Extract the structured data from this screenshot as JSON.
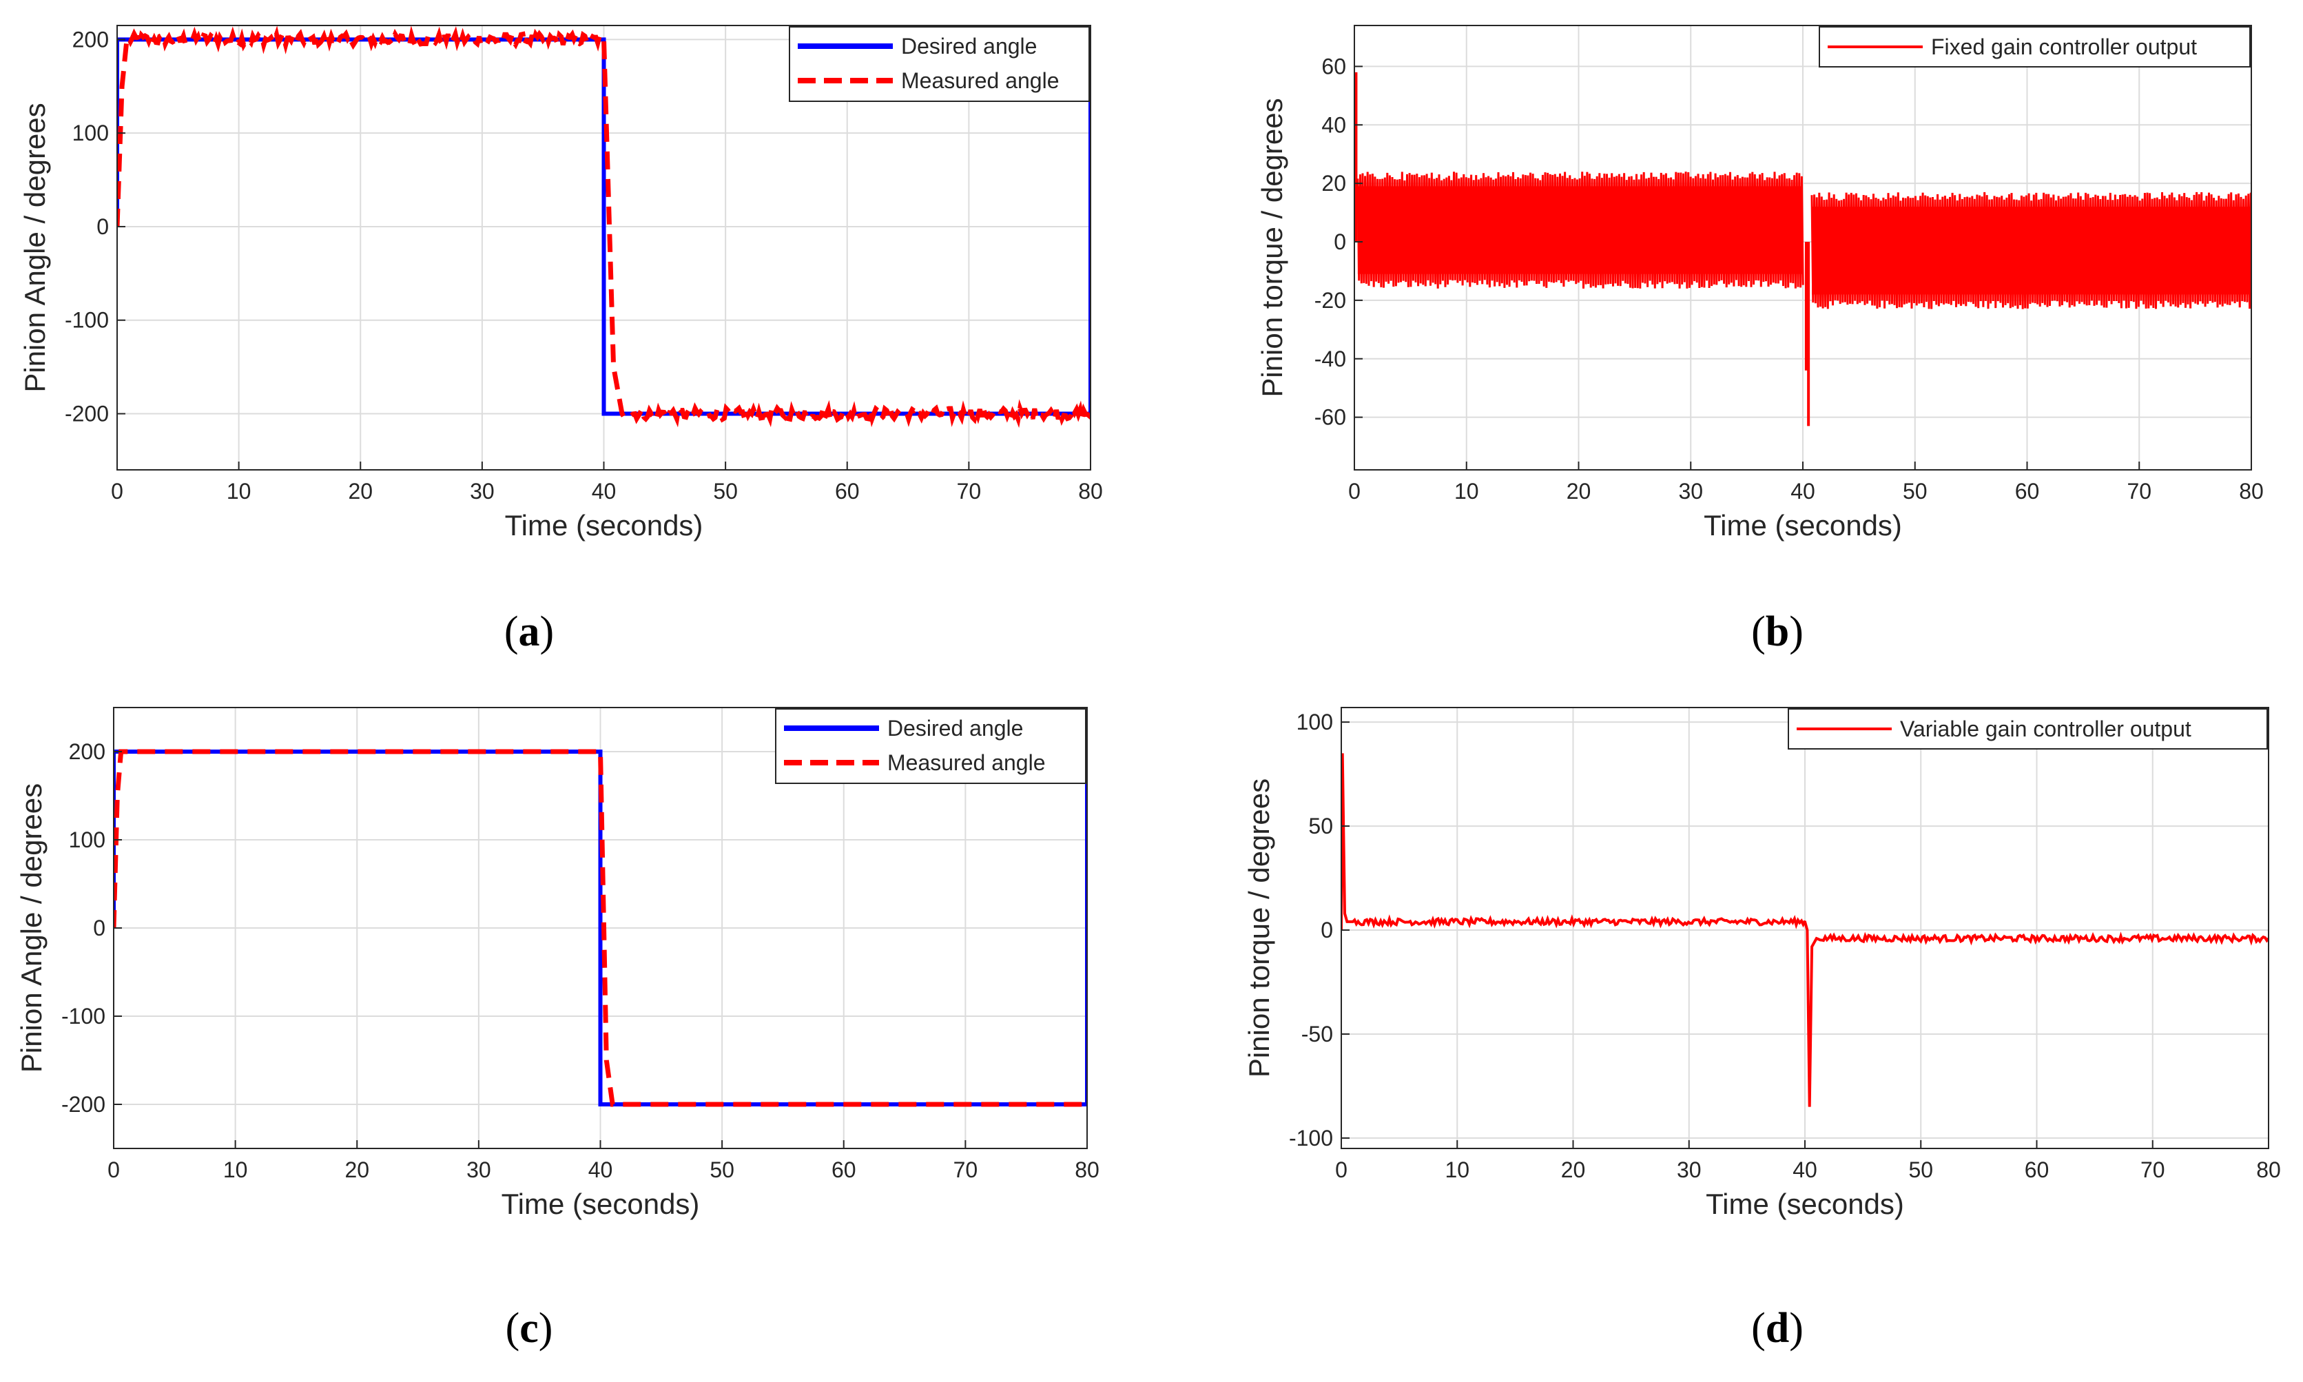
{
  "chart_data": [
    {
      "id": "a",
      "type": "line",
      "caption": "a",
      "xlabel": "Time (seconds)",
      "ylabel": "Pinion Angle / degrees",
      "xlim": [
        0,
        80
      ],
      "ylim": [
        -260,
        215
      ],
      "xticks": [
        0,
        10,
        20,
        30,
        40,
        50,
        60,
        70,
        80
      ],
      "yticks": [
        -200,
        -100,
        0,
        100,
        200
      ],
      "xtick_labels": [
        "0",
        "10",
        "20",
        "30",
        "40",
        "50",
        "60",
        "70",
        "80"
      ],
      "ytick_labels": [
        "-200",
        "-100",
        "0",
        "100",
        "200"
      ],
      "legend": {
        "location": "top-right",
        "entries": [
          "Desired angle",
          "Measured angle"
        ]
      },
      "series": [
        {
          "name": "Desired angle",
          "color": "#0000ff",
          "style": "solid",
          "x": [
            0,
            0,
            40,
            40,
            80,
            80
          ],
          "y": [
            0,
            200,
            200,
            -200,
            -200,
            200
          ]
        },
        {
          "name": "Measured angle",
          "color": "#ff0000",
          "style": "dashed",
          "x": [
            0,
            0.4,
            0.8,
            40,
            40.8,
            41.5,
            80
          ],
          "y": [
            0,
            150,
            200,
            200,
            -150,
            -200,
            -200
          ],
          "noise": 6
        }
      ]
    },
    {
      "id": "b",
      "type": "line",
      "caption": "b",
      "xlabel": "Time (seconds)",
      "ylabel": "Pinion torque / degrees",
      "xlim": [
        0,
        80
      ],
      "ylim": [
        -78,
        74
      ],
      "xticks": [
        0,
        10,
        20,
        30,
        40,
        50,
        60,
        70,
        80
      ],
      "yticks": [
        -60,
        -40,
        -20,
        0,
        20,
        40,
        60
      ],
      "xtick_labels": [
        "0",
        "10",
        "20",
        "30",
        "40",
        "50",
        "60",
        "70",
        "80"
      ],
      "ytick_labels": [
        "-60",
        "-40",
        "-20",
        "0",
        "20",
        "40",
        "60"
      ],
      "legend": {
        "location": "top-right",
        "entries": [
          "Fixed gain controller output"
        ]
      },
      "series": [
        {
          "name": "Fixed gain controller output",
          "color": "#ff0000",
          "style": "solid",
          "segments": [
            {
              "from": 0.3,
              "to": 40,
              "low": -16,
              "high": 24
            },
            {
              "from": 40.8,
              "to": 80,
              "low": -23,
              "high": 17
            }
          ],
          "spikes": [
            {
              "x": 0.15,
              "y": 58
            },
            {
              "x": 40.3,
              "y": -44
            },
            {
              "x": 40.5,
              "y": -63
            }
          ]
        }
      ]
    },
    {
      "id": "c",
      "type": "line",
      "caption": "c",
      "xlabel": "Time (seconds)",
      "ylabel": "Pinion Angle / degrees",
      "xlim": [
        0,
        80
      ],
      "ylim": [
        -250,
        250
      ],
      "xticks": [
        0,
        10,
        20,
        30,
        40,
        50,
        60,
        70,
        80
      ],
      "yticks": [
        -200,
        -100,
        0,
        100,
        200
      ],
      "xtick_labels": [
        "0",
        "10",
        "20",
        "30",
        "40",
        "50",
        "60",
        "70",
        "80"
      ],
      "ytick_labels": [
        "-200",
        "-100",
        "0",
        "100",
        "200"
      ],
      "legend": {
        "location": "top-right",
        "entries": [
          "Desired angle",
          "Measured angle"
        ]
      },
      "series": [
        {
          "name": "Desired angle",
          "color": "#0000ff",
          "style": "solid",
          "x": [
            0,
            0,
            40,
            40,
            80,
            80
          ],
          "y": [
            0,
            200,
            200,
            -200,
            -200,
            200
          ]
        },
        {
          "name": "Measured angle",
          "color": "#ff0000",
          "style": "dashed",
          "x": [
            0,
            0.3,
            0.6,
            40,
            40.5,
            41,
            80
          ],
          "y": [
            0,
            150,
            200,
            200,
            -150,
            -200,
            -200
          ],
          "noise": 0
        }
      ]
    },
    {
      "id": "d",
      "type": "line",
      "caption": "d",
      "xlabel": "Time (seconds)",
      "ylabel": "Pinion torque / degrees",
      "xlim": [
        0,
        80
      ],
      "ylim": [
        -105,
        107
      ],
      "xticks": [
        0,
        10,
        20,
        30,
        40,
        50,
        60,
        70,
        80
      ],
      "yticks": [
        -100,
        -50,
        0,
        50,
        100
      ],
      "xtick_labels": [
        "0",
        "10",
        "20",
        "30",
        "40",
        "50",
        "60",
        "70",
        "80"
      ],
      "ytick_labels": [
        "-100",
        "-50",
        "0",
        "50",
        "100"
      ],
      "legend": {
        "location": "top-right",
        "entries": [
          "Variable gain controller output"
        ]
      },
      "series": [
        {
          "name": "Variable gain controller output",
          "color": "#ff0000",
          "style": "solid",
          "x": [
            0,
            0.1,
            0.2,
            0.3,
            0.5,
            1,
            40,
            40.2,
            40.4,
            40.6,
            41,
            80
          ],
          "y": [
            0,
            85,
            45,
            8,
            4,
            4,
            4,
            0,
            -85,
            -8,
            -4,
            -4
          ],
          "noise": 1.5
        }
      ]
    }
  ]
}
